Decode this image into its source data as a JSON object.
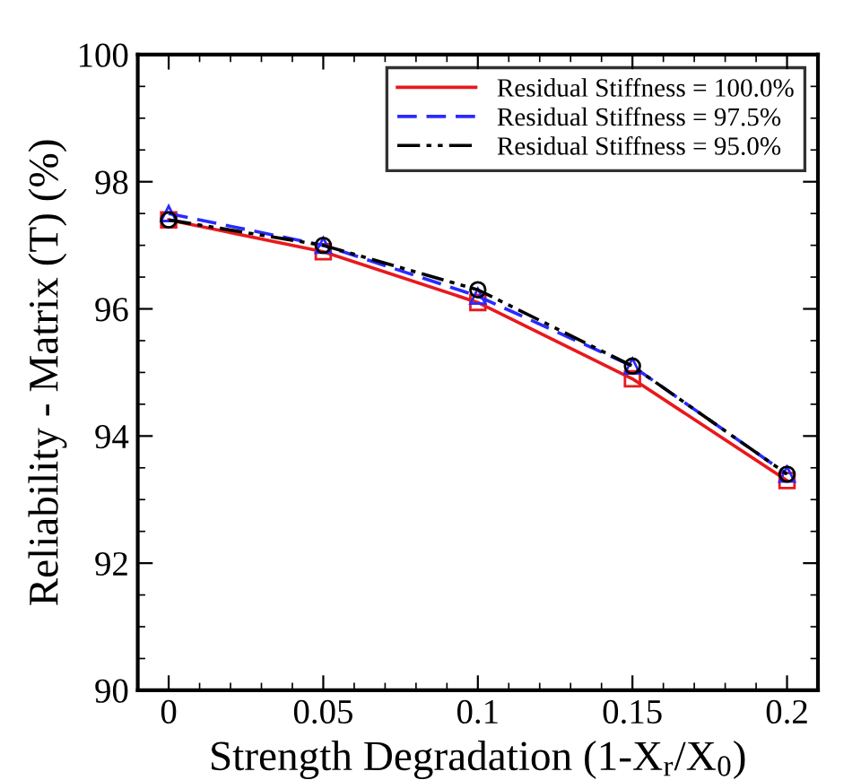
{
  "chart_data": {
    "type": "line",
    "xlabel": "Strength Degradation (1-X$_{r}$/X$_{0}$)",
    "ylabel": "Reliability - Matrix (T) (%)",
    "x": [
      0,
      0.05,
      0.1,
      0.15,
      0.2
    ],
    "series": [
      {
        "name": "Residual Stiffness = 100.0%",
        "color": "#e8191c",
        "values": [
          97.4,
          96.9,
          96.1,
          94.9,
          93.3
        ],
        "marker": "square",
        "line_style": "solid"
      },
      {
        "name": "Residual Stiffness = 97.5%",
        "color": "#2a2aff",
        "values": [
          97.5,
          97.0,
          96.2,
          95.1,
          93.4
        ],
        "marker": "triangle",
        "line_style": "dashed"
      },
      {
        "name": "Residual Stiffness = 95.0%",
        "color": "#000000",
        "values": [
          97.4,
          97.0,
          96.3,
          95.1,
          93.4
        ],
        "marker": "circle",
        "line_style": "dashdotdot"
      }
    ],
    "xlim": [
      -0.01,
      0.21
    ],
    "xticks": [
      0,
      0.05,
      0.1,
      0.15,
      0.2
    ],
    "ylim": [
      90,
      100
    ],
    "yticks": [
      90,
      92,
      94,
      96,
      98,
      100
    ],
    "grid": false,
    "legend": "top right"
  }
}
